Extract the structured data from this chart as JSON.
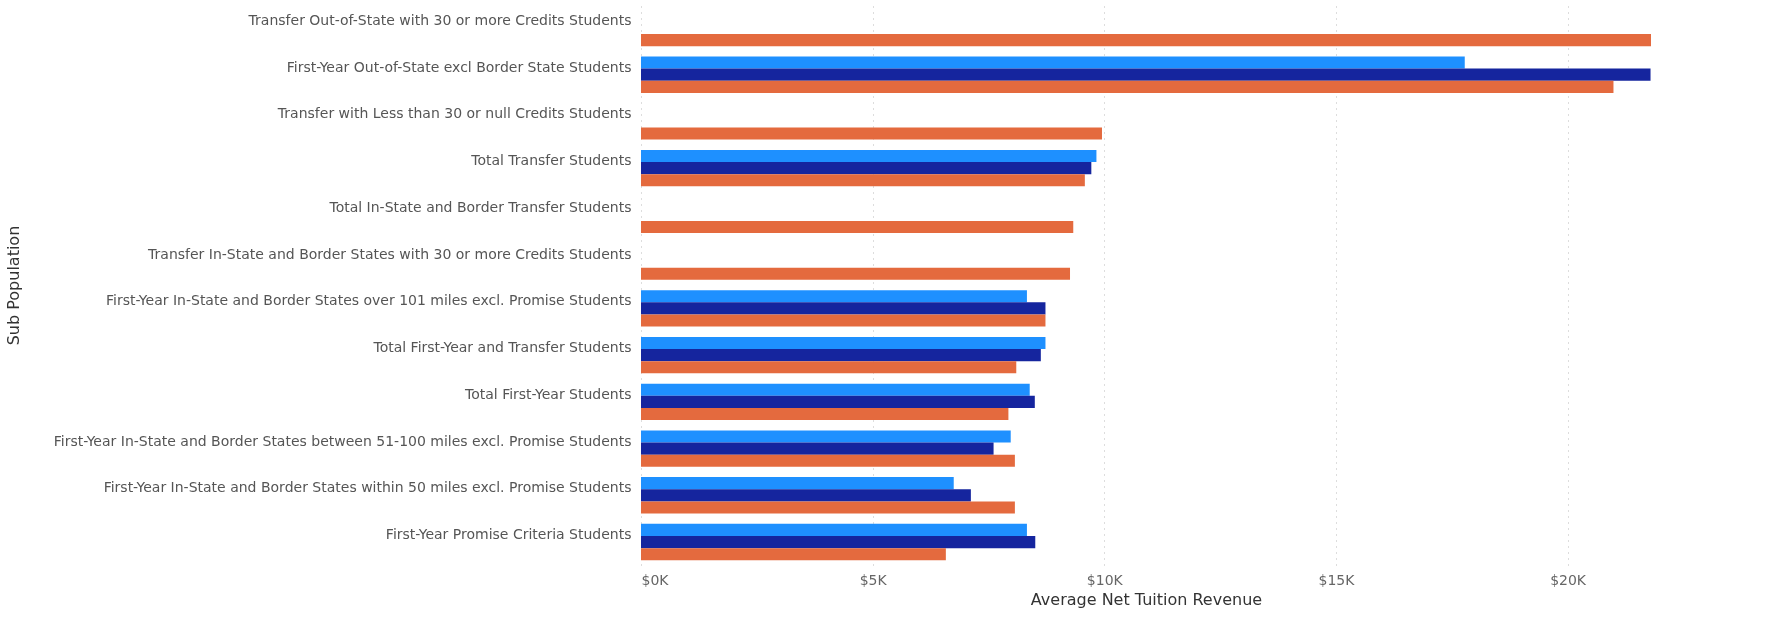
{
  "chart_data": {
    "type": "bar",
    "orientation": "horizontal",
    "ylabel": "Sub Population",
    "xlabel": "Average Net Tuition Revenue",
    "categories": [
      "Transfer Out-of-State with 30 or more Credits Students",
      "First-Year Out-of-State excl Border State Students",
      "Transfer with Less than 30 or null Credits Students",
      "Total Transfer Students",
      "Total In-State and Border Transfer Students",
      "Transfer In-State and Border States with 30 or more Credits Students",
      "First-Year In-State and Border States over 101 miles excl. Promise Students",
      "Total First-Year and Transfer Students",
      "Total First-Year Students",
      "First-Year In-State and Border States between 51-100 miles excl. Promise Students",
      "First-Year In-State and Border States within 50 miles excl. Promise Students",
      "First-Year Promise Criteria Students"
    ],
    "series": [
      {
        "color": "#1e90ff",
        "values": [
          null,
          17780,
          null,
          9830,
          null,
          null,
          8330,
          8730,
          8390,
          7980,
          6750,
          8330
        ]
      },
      {
        "color": "#15259e",
        "values": [
          null,
          21790,
          null,
          9720,
          null,
          null,
          8730,
          8630,
          8500,
          7610,
          7120,
          8510
        ]
      },
      {
        "color": "#e46a3e",
        "values": [
          21800,
          20990,
          9950,
          9580,
          9330,
          9260,
          8730,
          8100,
          7930,
          8070,
          8070,
          6580
        ]
      }
    ],
    "xlim": [
      0,
      21800
    ],
    "xticks": [
      {
        "value": 0,
        "label": "$0K"
      },
      {
        "value": 5000,
        "label": "$5K"
      },
      {
        "value": 10000,
        "label": "$10K"
      },
      {
        "value": 15000,
        "label": "$15K"
      },
      {
        "value": 20000,
        "label": "$20K"
      }
    ],
    "grid": "x"
  }
}
